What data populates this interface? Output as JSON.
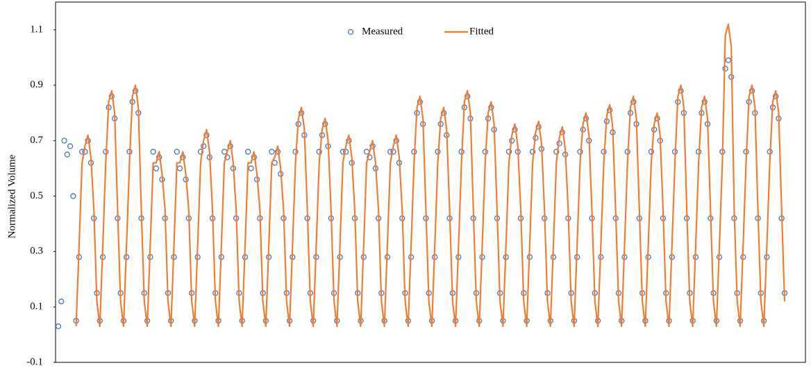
{
  "chart_data": {
    "type": "line",
    "y_label": "Normalized Volume",
    "ylim": [
      -0.1,
      1.2
    ],
    "yticks": [
      -0.1,
      0.1,
      0.3,
      0.5,
      0.7,
      0.9,
      1.1
    ],
    "legend": "top-center",
    "series": [
      {
        "name": "Measured",
        "marker": "circle",
        "color": "#4472c4",
        "values": [
          0.03,
          0.12,
          0.7,
          0.65,
          0.68,
          0.5,
          0.05,
          0.28,
          0.66,
          0.66,
          0.7,
          0.62,
          0.42,
          0.15,
          0.05,
          0.28,
          0.66,
          0.82,
          0.86,
          0.78,
          0.42,
          0.15,
          0.05,
          0.28,
          0.66,
          0.84,
          0.88,
          0.8,
          0.42,
          0.15,
          0.05,
          0.28,
          0.66,
          0.6,
          0.64,
          0.56,
          0.42,
          0.15,
          0.05,
          0.28,
          0.66,
          0.6,
          0.64,
          0.56,
          0.42,
          0.15,
          0.05,
          0.28,
          0.66,
          0.68,
          0.72,
          0.64,
          0.42,
          0.15,
          0.05,
          0.28,
          0.66,
          0.64,
          0.68,
          0.6,
          0.42,
          0.15,
          0.05,
          0.28,
          0.66,
          0.6,
          0.64,
          0.56,
          0.42,
          0.15,
          0.05,
          0.28,
          0.66,
          0.62,
          0.66,
          0.58,
          0.42,
          0.15,
          0.05,
          0.28,
          0.66,
          0.76,
          0.8,
          0.72,
          0.42,
          0.15,
          0.05,
          0.28,
          0.66,
          0.72,
          0.76,
          0.68,
          0.42,
          0.15,
          0.05,
          0.28,
          0.66,
          0.66,
          0.7,
          0.62,
          0.42,
          0.15,
          0.05,
          0.28,
          0.66,
          0.64,
          0.68,
          0.6,
          0.42,
          0.15,
          0.05,
          0.28,
          0.66,
          0.66,
          0.7,
          0.62,
          0.42,
          0.15,
          0.05,
          0.28,
          0.66,
          0.8,
          0.84,
          0.76,
          0.42,
          0.15,
          0.05,
          0.28,
          0.66,
          0.76,
          0.8,
          0.72,
          0.42,
          0.15,
          0.05,
          0.28,
          0.66,
          0.82,
          0.86,
          0.78,
          0.42,
          0.15,
          0.05,
          0.28,
          0.66,
          0.78,
          0.82,
          0.74,
          0.42,
          0.15,
          0.05,
          0.28,
          0.66,
          0.7,
          0.74,
          0.66,
          0.42,
          0.15,
          0.05,
          0.28,
          0.66,
          0.71,
          0.75,
          0.67,
          0.42,
          0.15,
          0.05,
          0.28,
          0.66,
          0.69,
          0.73,
          0.65,
          0.42,
          0.15,
          0.05,
          0.28,
          0.66,
          0.74,
          0.78,
          0.7,
          0.42,
          0.15,
          0.05,
          0.28,
          0.66,
          0.77,
          0.81,
          0.73,
          0.42,
          0.15,
          0.05,
          0.28,
          0.66,
          0.8,
          0.84,
          0.76,
          0.42,
          0.15,
          0.05,
          0.28,
          0.66,
          0.74,
          0.78,
          0.7,
          0.42,
          0.15,
          0.05,
          0.28,
          0.66,
          0.84,
          0.88,
          0.8,
          0.42,
          0.15,
          0.05,
          0.28,
          0.66,
          0.8,
          0.84,
          0.76,
          0.42,
          0.15,
          0.05,
          0.28,
          0.66,
          0.96,
          0.99,
          0.93,
          0.42,
          0.15,
          0.05,
          0.28,
          0.66,
          0.84,
          0.88,
          0.8,
          0.42,
          0.15,
          0.05,
          0.28,
          0.66,
          0.82,
          0.86,
          0.78,
          0.42,
          0.15
        ]
      },
      {
        "name": "Fitted",
        "color": "#ed7d31",
        "values": [
          null,
          null,
          null,
          null,
          null,
          null,
          0.03,
          0.32,
          0.62,
          0.68,
          0.72,
          0.64,
          0.45,
          0.12,
          0.03,
          0.32,
          0.62,
          0.84,
          0.88,
          0.8,
          0.45,
          0.12,
          0.03,
          0.32,
          0.62,
          0.86,
          0.9,
          0.82,
          0.45,
          0.12,
          0.03,
          0.32,
          0.62,
          0.62,
          0.66,
          0.58,
          0.45,
          0.12,
          0.03,
          0.32,
          0.62,
          0.62,
          0.66,
          0.58,
          0.45,
          0.12,
          0.03,
          0.32,
          0.62,
          0.7,
          0.74,
          0.66,
          0.45,
          0.12,
          0.03,
          0.32,
          0.62,
          0.66,
          0.7,
          0.62,
          0.45,
          0.12,
          0.03,
          0.32,
          0.62,
          0.62,
          0.66,
          0.58,
          0.45,
          0.12,
          0.03,
          0.32,
          0.62,
          0.64,
          0.68,
          0.6,
          0.45,
          0.12,
          0.03,
          0.32,
          0.62,
          0.78,
          0.82,
          0.74,
          0.45,
          0.12,
          0.03,
          0.32,
          0.62,
          0.74,
          0.78,
          0.7,
          0.45,
          0.12,
          0.03,
          0.32,
          0.62,
          0.68,
          0.72,
          0.64,
          0.45,
          0.12,
          0.03,
          0.32,
          0.62,
          0.66,
          0.7,
          0.62,
          0.45,
          0.12,
          0.03,
          0.32,
          0.62,
          0.68,
          0.72,
          0.64,
          0.45,
          0.12,
          0.03,
          0.32,
          0.62,
          0.82,
          0.86,
          0.78,
          0.45,
          0.12,
          0.03,
          0.32,
          0.62,
          0.78,
          0.82,
          0.74,
          0.45,
          0.12,
          0.03,
          0.32,
          0.62,
          0.84,
          0.88,
          0.8,
          0.45,
          0.12,
          0.03,
          0.32,
          0.62,
          0.8,
          0.84,
          0.76,
          0.45,
          0.12,
          0.03,
          0.32,
          0.62,
          0.72,
          0.76,
          0.68,
          0.45,
          0.12,
          0.03,
          0.32,
          0.62,
          0.73,
          0.77,
          0.69,
          0.45,
          0.12,
          0.03,
          0.32,
          0.62,
          0.71,
          0.75,
          0.67,
          0.45,
          0.12,
          0.03,
          0.32,
          0.62,
          0.76,
          0.8,
          0.72,
          0.45,
          0.12,
          0.03,
          0.32,
          0.62,
          0.79,
          0.83,
          0.75,
          0.45,
          0.12,
          0.03,
          0.32,
          0.62,
          0.82,
          0.86,
          0.78,
          0.45,
          0.12,
          0.03,
          0.32,
          0.62,
          0.76,
          0.8,
          0.72,
          0.45,
          0.12,
          0.03,
          0.32,
          0.62,
          0.86,
          0.9,
          0.82,
          0.45,
          0.12,
          0.03,
          0.32,
          0.62,
          0.82,
          0.86,
          0.78,
          0.45,
          0.12,
          0.03,
          0.32,
          0.62,
          1.08,
          1.12,
          1.04,
          0.45,
          0.12,
          0.03,
          0.32,
          0.62,
          0.86,
          0.9,
          0.82,
          0.45,
          0.12,
          0.03,
          0.32,
          0.62,
          0.84,
          0.88,
          0.8,
          0.45,
          0.12
        ]
      }
    ]
  }
}
